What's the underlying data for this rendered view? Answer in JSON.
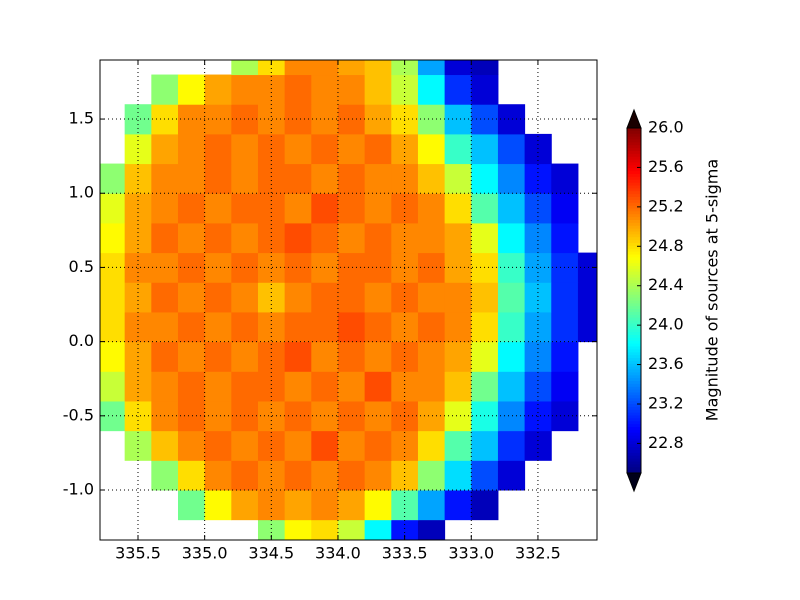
{
  "chart_data": {
    "type": "heatmap",
    "xlim": [
      335.785,
      332.057
    ],
    "ylim": [
      -1.337,
      1.898
    ],
    "xticks": [
      335.5,
      {
        "value": 335,
        "label": "335.0"
      },
      334.5,
      {
        "value": 334,
        "label": "334.0"
      },
      333.5,
      {
        "value": 333,
        "label": "333.0"
      },
      332.5
    ],
    "yticks": [
      {
        "value": -1,
        "label": "-1.0"
      },
      -0.5,
      {
        "value": 0,
        "label": "0.0"
      },
      0.5,
      {
        "value": 1,
        "label": "1.0"
      },
      1.5
    ],
    "grid": true,
    "colormap": "jet",
    "clim": [
      22.5,
      26.0
    ],
    "colorbar_extend": "both",
    "colorbar_label": "Magnitude of sources at 5-sigma",
    "colorbar_ticks": [
      22.8,
      23.2,
      23.6,
      {
        "value": 24,
        "label": "24.0"
      },
      24.4,
      24.8,
      25.2,
      25.6,
      {
        "value": 26,
        "label": "26.0"
      }
    ],
    "xbins": [
      335.8,
      335.6,
      335.4,
      335.2,
      335.0,
      334.8,
      334.6,
      334.4,
      334.2,
      334.0,
      333.8,
      333.6,
      333.4,
      333.2,
      333.0,
      332.8,
      332.6,
      332.4,
      332.2,
      332.0
    ],
    "ybins": [
      -1.4,
      -1.2,
      -1.0,
      -0.8,
      -0.6,
      -0.4,
      -0.2,
      0.0,
      0.2,
      0.4,
      0.6,
      0.8,
      1.0,
      1.2,
      1.4,
      1.6,
      1.8,
      2.0
    ],
    "values": [
      [
        null,
        null,
        null,
        null,
        null,
        null,
        24.3,
        24.7,
        24.8,
        24.5,
        23.8,
        23.0,
        22.7,
        null,
        null,
        null,
        null,
        null,
        null
      ],
      [
        null,
        null,
        null,
        24.2,
        24.7,
        25.0,
        25.1,
        25.0,
        25.1,
        25.0,
        24.7,
        24.1,
        23.5,
        23.0,
        22.7,
        null,
        null,
        null,
        null
      ],
      [
        null,
        null,
        24.3,
        24.8,
        25.1,
        25.2,
        25.1,
        25.2,
        25.1,
        25.2,
        25.1,
        24.9,
        24.3,
        23.7,
        23.2,
        22.8,
        null,
        null,
        null
      ],
      [
        null,
        24.4,
        24.9,
        25.1,
        25.2,
        25.1,
        25.2,
        25.1,
        25.3,
        25.1,
        25.2,
        25.1,
        24.8,
        24.1,
        23.6,
        23.1,
        22.8,
        null,
        null
      ],
      [
        24.2,
        24.8,
        25.1,
        25.2,
        25.1,
        25.2,
        25.1,
        25.2,
        25.1,
        25.2,
        25.1,
        25.2,
        25.0,
        24.6,
        23.9,
        23.4,
        23.0,
        22.8,
        null
      ],
      [
        24.5,
        25.0,
        25.1,
        25.2,
        25.1,
        25.2,
        25.2,
        25.1,
        25.2,
        25.1,
        25.3,
        25.1,
        25.1,
        24.9,
        24.2,
        23.6,
        23.2,
        22.9,
        null
      ],
      [
        24.7,
        25.0,
        25.2,
        25.1,
        25.2,
        25.1,
        25.2,
        25.3,
        25.1,
        25.2,
        25.1,
        25.2,
        25.1,
        25.0,
        24.6,
        23.8,
        23.4,
        23.0,
        null
      ],
      [
        24.8,
        25.1,
        25.1,
        25.2,
        25.1,
        25.2,
        25.1,
        25.2,
        25.2,
        25.3,
        25.2,
        25.1,
        25.2,
        25.1,
        24.8,
        24.0,
        23.5,
        23.1,
        22.8
      ],
      [
        24.8,
        25.0,
        25.2,
        25.1,
        25.2,
        25.1,
        24.9,
        25.1,
        25.2,
        25.2,
        25.1,
        25.2,
        25.1,
        25.1,
        24.9,
        24.1,
        23.6,
        23.1,
        22.8
      ],
      [
        24.8,
        25.1,
        25.1,
        25.2,
        25.1,
        25.2,
        25.1,
        25.2,
        25.1,
        25.2,
        25.2,
        25.1,
        25.2,
        25.0,
        24.8,
        24.0,
        23.5,
        23.1,
        22.8
      ],
      [
        24.7,
        25.0,
        25.2,
        25.1,
        25.2,
        25.1,
        25.2,
        25.3,
        25.2,
        25.1,
        25.2,
        25.1,
        25.1,
        25.0,
        24.6,
        23.8,
        23.4,
        23.0,
        null
      ],
      [
        24.6,
        25.0,
        25.1,
        25.2,
        25.1,
        25.2,
        25.2,
        25.1,
        25.3,
        25.2,
        25.1,
        25.2,
        25.1,
        24.8,
        24.1,
        23.6,
        23.2,
        22.9,
        null
      ],
      [
        24.3,
        24.9,
        25.1,
        25.1,
        25.2,
        25.1,
        25.2,
        25.2,
        25.1,
        25.2,
        25.1,
        25.1,
        24.9,
        24.5,
        23.8,
        23.4,
        23.0,
        22.8,
        null
      ],
      [
        null,
        24.6,
        25.0,
        25.1,
        25.2,
        25.1,
        25.2,
        25.1,
        25.2,
        25.1,
        25.2,
        25.0,
        24.7,
        24.0,
        23.6,
        23.2,
        22.8,
        null,
        null
      ],
      [
        null,
        24.2,
        24.8,
        25.1,
        25.1,
        25.2,
        25.1,
        25.2,
        25.1,
        25.2,
        25.0,
        24.8,
        24.3,
        23.6,
        23.2,
        22.8,
        null,
        null,
        null
      ],
      [
        null,
        null,
        24.3,
        24.7,
        25.0,
        25.1,
        25.1,
        25.2,
        25.1,
        25.1,
        24.9,
        24.5,
        23.8,
        23.1,
        22.8,
        null,
        null,
        null,
        null
      ],
      [
        null,
        null,
        null,
        null,
        null,
        24.4,
        24.8,
        25.1,
        25.1,
        25.0,
        24.9,
        24.4,
        23.5,
        22.8,
        22.7,
        null,
        null,
        null,
        null
      ]
    ]
  }
}
